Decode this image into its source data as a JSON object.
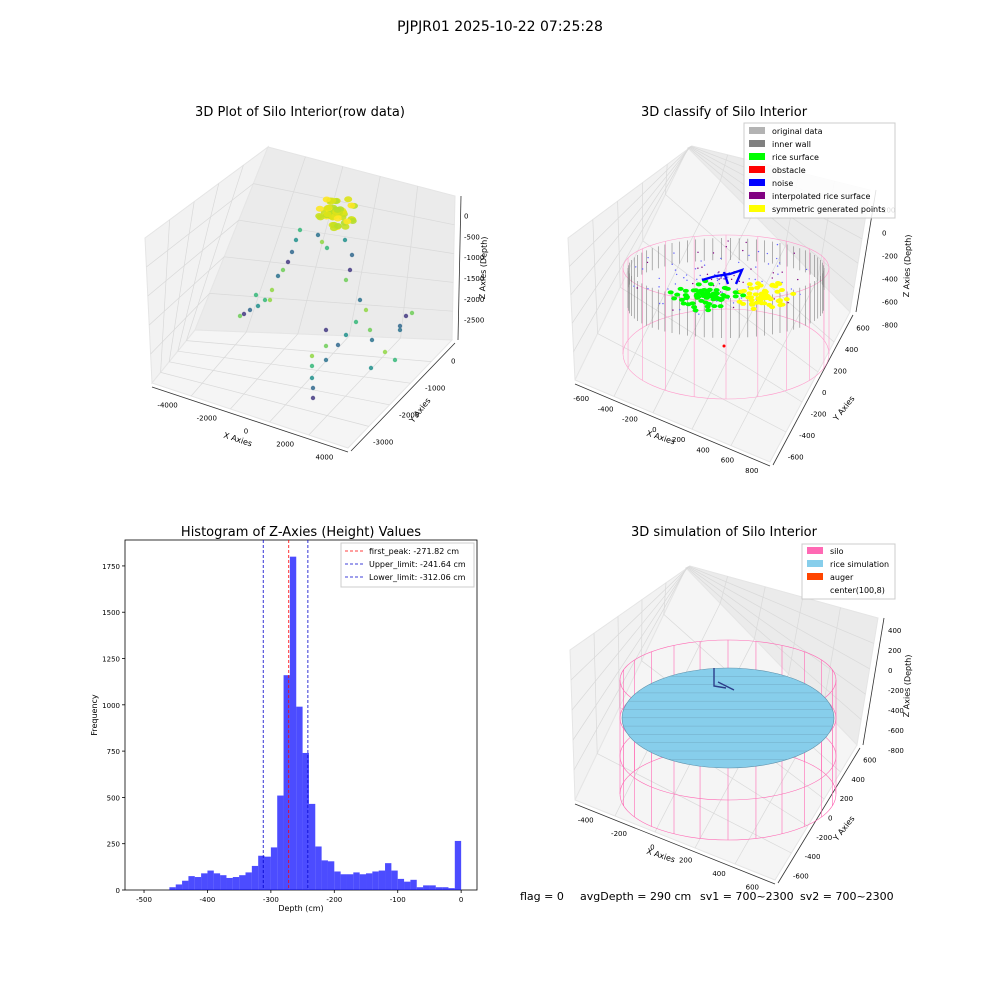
{
  "suptitle": "PJPJR01 2025-10-22 07:25:28",
  "status": {
    "flag": "flag = 0",
    "avg_depth": "avgDepth = 290 cm",
    "sv1": "sv1 = 700~2300",
    "sv2": "sv2 = 700~2300"
  },
  "chart_data": [
    {
      "type": "scatter",
      "title": "3D Plot of Silo Interior(row data)",
      "xlabel": "X Axies",
      "ylabel": "Y Axies",
      "zlabel": "Z Axies (Depth)",
      "x_ticks": [
        "-4000",
        "-2000",
        "0",
        "2000",
        "4000"
      ],
      "y_ticks": [
        "-3000",
        "-2000",
        "-1000",
        "0"
      ],
      "z_ticks": [
        "0",
        "-500",
        "-1000",
        "-1500",
        "-2000",
        "-2500"
      ],
      "colormap": "viridis"
    },
    {
      "type": "scatter",
      "title": "3D classify of Silo Interior",
      "xlabel": "X Axies",
      "ylabel": "Y Axies",
      "zlabel": "Z Axies (Depth)",
      "x_ticks": [
        "-600",
        "-400",
        "-200",
        "0",
        "200",
        "400",
        "600",
        "800"
      ],
      "y_ticks": [
        "-600",
        "-400",
        "-200",
        "0",
        "200",
        "400",
        "600"
      ],
      "z_ticks": [
        "200",
        "0",
        "-200",
        "-400",
        "-600",
        "-800"
      ],
      "legend": [
        {
          "label": "original data",
          "color": "#b3b3b3"
        },
        {
          "label": "inner wall",
          "color": "#808080"
        },
        {
          "label": "rice surface",
          "color": "#00ff00"
        },
        {
          "label": "obstacle",
          "color": "#ff0000"
        },
        {
          "label": "noise",
          "color": "#0000ff"
        },
        {
          "label": "interpolated rice surface",
          "color": "#800080"
        },
        {
          "label": "symmetric generated points",
          "color": "#ffff00"
        }
      ],
      "legend_loc": "upper right"
    },
    {
      "type": "bar",
      "title": "Histogram of Z-Axies (Height) Values",
      "xlabel": "Depth (cm)",
      "ylabel": "Frequency",
      "xlim": [
        -530,
        25
      ],
      "ylim": [
        0,
        1890
      ],
      "x_ticks": [
        -500,
        -400,
        -300,
        -200,
        -100,
        0
      ],
      "y_ticks": [
        0,
        250,
        500,
        750,
        1000,
        1250,
        1500,
        1750
      ],
      "bar_color": "#0000ff",
      "bins": [
        {
          "x0": -460,
          "x1": -450,
          "count": 15
        },
        {
          "x0": -450,
          "x1": -440,
          "count": 30
        },
        {
          "x0": -440,
          "x1": -430,
          "count": 50
        },
        {
          "x0": -430,
          "x1": -420,
          "count": 75
        },
        {
          "x0": -420,
          "x1": -410,
          "count": 70
        },
        {
          "x0": -410,
          "x1": -400,
          "count": 90
        },
        {
          "x0": -400,
          "x1": -390,
          "count": 105
        },
        {
          "x0": -390,
          "x1": -380,
          "count": 90
        },
        {
          "x0": -380,
          "x1": -370,
          "count": 80
        },
        {
          "x0": -370,
          "x1": -360,
          "count": 65
        },
        {
          "x0": -360,
          "x1": -350,
          "count": 70
        },
        {
          "x0": -350,
          "x1": -340,
          "count": 80
        },
        {
          "x0": -340,
          "x1": -330,
          "count": 95
        },
        {
          "x0": -330,
          "x1": -320,
          "count": 130
        },
        {
          "x0": -320,
          "x1": -310,
          "count": 185
        },
        {
          "x0": -310,
          "x1": -300,
          "count": 180
        },
        {
          "x0": -300,
          "x1": -290,
          "count": 230
        },
        {
          "x0": -290,
          "x1": -280,
          "count": 510
        },
        {
          "x0": -280,
          "x1": -270,
          "count": 1160
        },
        {
          "x0": -270,
          "x1": -260,
          "count": 1800
        },
        {
          "x0": -260,
          "x1": -250,
          "count": 990
        },
        {
          "x0": -250,
          "x1": -240,
          "count": 740
        },
        {
          "x0": -240,
          "x1": -230,
          "count": 465
        },
        {
          "x0": -230,
          "x1": -220,
          "count": 235
        },
        {
          "x0": -220,
          "x1": -210,
          "count": 160
        },
        {
          "x0": -210,
          "x1": -200,
          "count": 155
        },
        {
          "x0": -200,
          "x1": -190,
          "count": 100
        },
        {
          "x0": -190,
          "x1": -180,
          "count": 85
        },
        {
          "x0": -180,
          "x1": -170,
          "count": 85
        },
        {
          "x0": -170,
          "x1": -160,
          "count": 95
        },
        {
          "x0": -160,
          "x1": -150,
          "count": 85
        },
        {
          "x0": -150,
          "x1": -140,
          "count": 90
        },
        {
          "x0": -140,
          "x1": -130,
          "count": 100
        },
        {
          "x0": -130,
          "x1": -120,
          "count": 105
        },
        {
          "x0": -120,
          "x1": -110,
          "count": 145
        },
        {
          "x0": -110,
          "x1": -100,
          "count": 105
        },
        {
          "x0": -100,
          "x1": -90,
          "count": 60
        },
        {
          "x0": -90,
          "x1": -80,
          "count": 45
        },
        {
          "x0": -80,
          "x1": -70,
          "count": 55
        },
        {
          "x0": -70,
          "x1": -60,
          "count": 15
        },
        {
          "x0": -60,
          "x1": -50,
          "count": 25
        },
        {
          "x0": -50,
          "x1": -40,
          "count": 25
        },
        {
          "x0": -40,
          "x1": -30,
          "count": 15
        },
        {
          "x0": -30,
          "x1": -20,
          "count": 15
        },
        {
          "x0": -20,
          "x1": -10,
          "count": 10
        },
        {
          "x0": -10,
          "x1": 0,
          "count": 265
        }
      ],
      "vlines": [
        {
          "label": "first_peak: -271.82 cm",
          "x": -271.82,
          "color": "#ff0000"
        },
        {
          "label": "Upper_limit: -241.64 cm",
          "x": -241.64,
          "color": "#0000cc"
        },
        {
          "label": "Lower_limit: -312.06 cm",
          "x": -312.06,
          "color": "#0000cc"
        }
      ],
      "legend_loc": "upper right"
    },
    {
      "type": "scatter",
      "title": "3D simulation of Silo Interior",
      "xlabel": "X Axies",
      "ylabel": "Y Axies",
      "zlabel": "Z Axies (Depth)",
      "x_ticks": [
        "-400",
        "-200",
        "0",
        "200",
        "400",
        "600"
      ],
      "y_ticks": [
        "-600",
        "-400",
        "-200",
        "0",
        "200",
        "400",
        "600"
      ],
      "z_ticks": [
        "400",
        "200",
        "0",
        "-200",
        "-400",
        "-600",
        "-800"
      ],
      "legend": [
        {
          "label": "silo",
          "color": "#ff69b4"
        },
        {
          "label": "rice simulation",
          "color": "#87ceeb"
        },
        {
          "label": "auger",
          "color": "#ff4500"
        },
        {
          "label": "center(100,8)",
          "color": "#ffffff"
        }
      ],
      "legend_loc": "upper right"
    }
  ]
}
